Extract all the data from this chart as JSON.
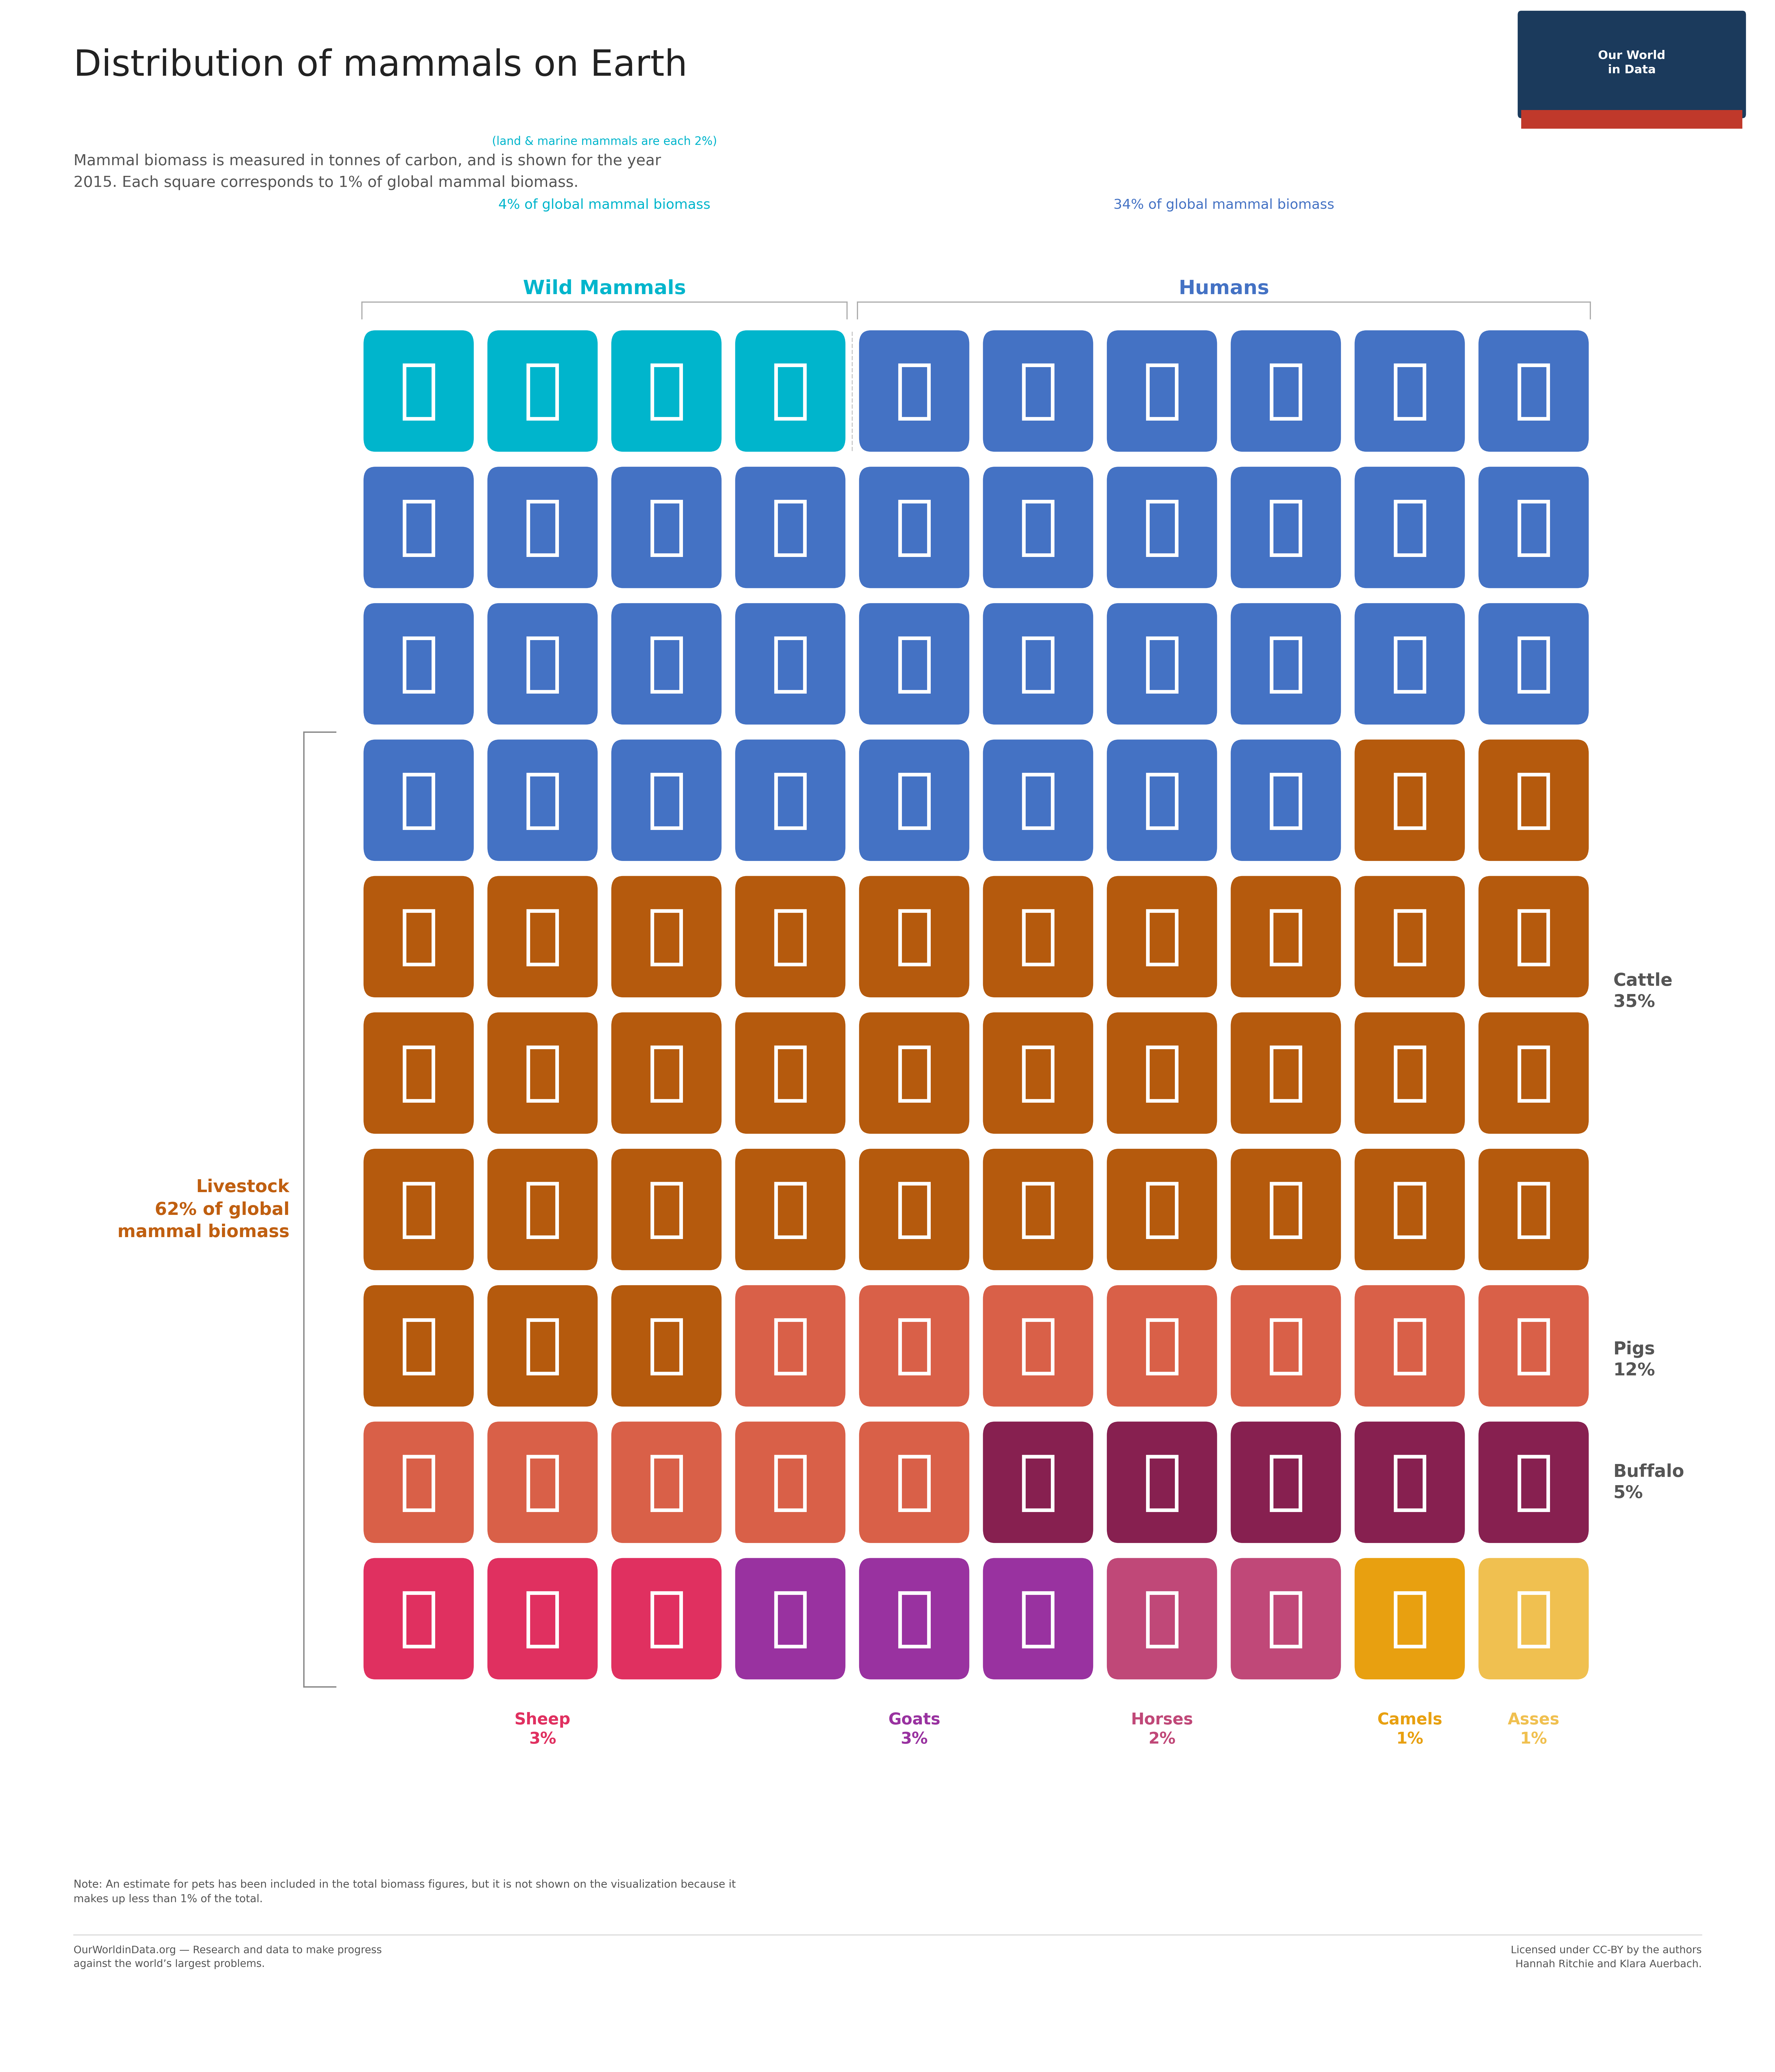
{
  "title": "Distribution of mammals on Earth",
  "subtitle": "Mammal biomass is measured in tonnes of carbon, and is shown for the year\n2015. Each square corresponds to 1% of global mammal biomass.",
  "owid_box_color": "#1b3a5c",
  "owid_accent_color": "#c0392b",
  "wild_label": "Wild Mammals",
  "wild_sublabel1": "4% of global mammal biomass",
  "wild_sublabel2": "(land & marine mammals are each 2%)",
  "wild_color": "#00b5cc",
  "human_label": "Humans",
  "human_sublabel": "34% of global mammal biomass",
  "human_color": "#4472c4",
  "livestock_label": "Livestock",
  "livestock_sublabel": "62% of global\nmammal biomass",
  "livestock_color": "#c05f10",
  "background_color": "#ffffff",
  "note": "Note: An estimate for pets has been included in the total biomass figures, but it is not shown on the visualization because it\nmakes up less than 1% of the total.",
  "footer_left": "OurWorldinData.org — Research and data to make progress\nagainst the world’s largest problems.",
  "footer_right": "Licensed under CC-BY by the authors\nHannah Ritchie and Klara Auerbach.",
  "sequence": [
    {
      "type": "wild_land",
      "count": 2,
      "color": "#00b5cc"
    },
    {
      "type": "wild_sea",
      "count": 2,
      "color": "#00b5cc"
    },
    {
      "type": "human",
      "count": 34,
      "color": "#4472c4"
    },
    {
      "type": "cattle",
      "count": 35,
      "color": "#b55a0d",
      "label": "Cattle",
      "pct": "35%",
      "label_color": "#555555"
    },
    {
      "type": "pig",
      "count": 12,
      "color": "#d96048",
      "label": "Pigs",
      "pct": "12%",
      "label_color": "#555555"
    },
    {
      "type": "buffalo",
      "count": 5,
      "color": "#872050",
      "label": "Buffalo",
      "pct": "5%",
      "label_color": "#555555"
    },
    {
      "type": "sheep",
      "count": 3,
      "color": "#e03060",
      "label": "Sheep",
      "pct": "3%",
      "label_color": "#e03060"
    },
    {
      "type": "goat",
      "count": 3,
      "color": "#9932a0",
      "label": "Goats",
      "pct": "3%",
      "label_color": "#9932a0"
    },
    {
      "type": "horse",
      "count": 2,
      "color": "#c04878",
      "label": "Horses",
      "pct": "2%",
      "label_color": "#c04878"
    },
    {
      "type": "camel",
      "count": 1,
      "color": "#e8a010",
      "label": "Camels",
      "pct": "1%",
      "label_color": "#e8a010"
    },
    {
      "type": "ass",
      "count": 1,
      "color": "#f0c050",
      "label": "Asses",
      "pct": "1%",
      "label_color": "#f0c050"
    }
  ],
  "grid_cols": 10,
  "grid_rows": 10,
  "GL": 0.2,
  "GR": 0.9,
  "GT": 0.845,
  "GB": 0.185
}
